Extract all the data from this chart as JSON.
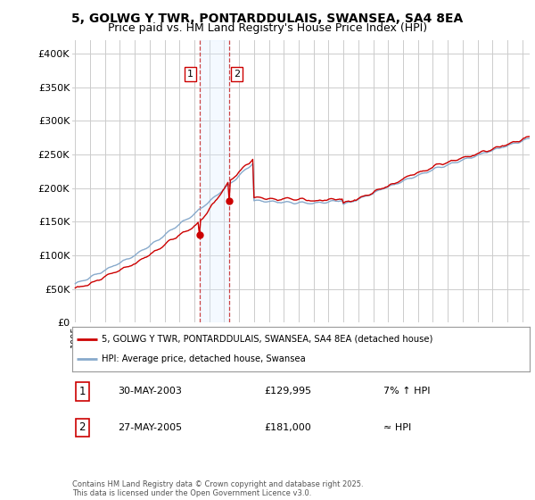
{
  "title": "5, GOLWG Y TWR, PONTARDDULAIS, SWANSEA, SA4 8EA",
  "subtitle": "Price paid vs. HM Land Registry's House Price Index (HPI)",
  "ylabel_ticks": [
    "£0",
    "£50K",
    "£100K",
    "£150K",
    "£200K",
    "£250K",
    "£300K",
    "£350K",
    "£400K"
  ],
  "ytick_values": [
    0,
    50000,
    100000,
    150000,
    200000,
    250000,
    300000,
    350000,
    400000
  ],
  "ylim": [
    0,
    420000
  ],
  "sale1_date": "30-MAY-2003",
  "sale1_price": 129995,
  "sale1_hpi": "7% ↑ HPI",
  "sale2_date": "27-MAY-2005",
  "sale2_price": 181000,
  "sale2_hpi": "≈ HPI",
  "legend_line1": "5, GOLWG Y TWR, PONTARDDULAIS, SWANSEA, SA4 8EA (detached house)",
  "legend_line2": "HPI: Average price, detached house, Swansea",
  "footer": "Contains HM Land Registry data © Crown copyright and database right 2025.\nThis data is licensed under the Open Government Licence v3.0.",
  "red_color": "#cc0000",
  "blue_color": "#88aacc",
  "shade_color": "#ddeeff",
  "background_color": "#ffffff",
  "grid_color": "#cccccc",
  "title_fontsize": 10,
  "subtitle_fontsize": 9,
  "tick_fontsize": 8,
  "x_start_year": 1995,
  "x_end_year": 2025
}
